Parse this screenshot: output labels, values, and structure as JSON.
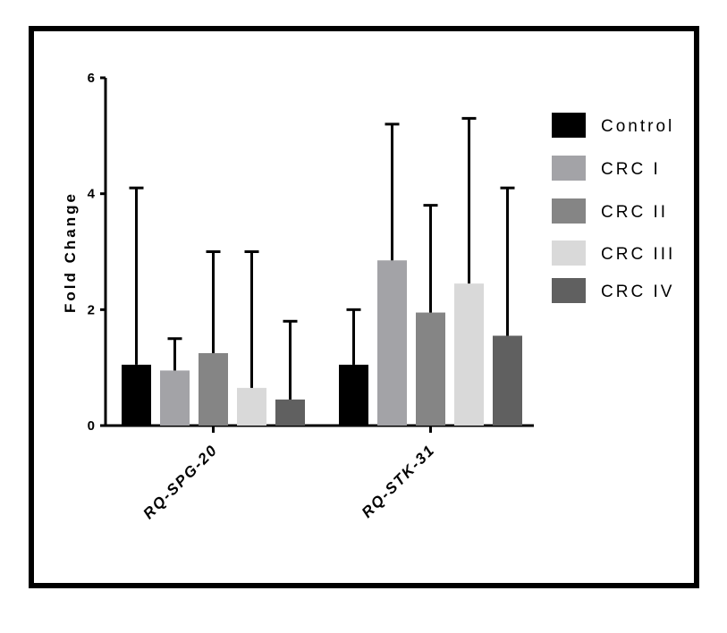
{
  "chart_data": {
    "type": "bar",
    "title": "",
    "xlabel": "",
    "ylabel": "Fold Change",
    "ylim": [
      0,
      6
    ],
    "yticks": [
      "0",
      "2",
      "4",
      "6"
    ],
    "categories": [
      "RQ-SPG-20",
      "RQ-STK-31"
    ],
    "series": [
      {
        "name": "Control",
        "color": "#000000",
        "values": [
          1.05,
          1.05
        ],
        "error_upper": [
          4.1,
          2.0
        ]
      },
      {
        "name": "CRC I",
        "color": "#a3a3a7",
        "values": [
          0.95,
          2.85
        ],
        "error_upper": [
          1.5,
          5.2
        ]
      },
      {
        "name": "CRC II",
        "color": "#858585",
        "values": [
          1.25,
          1.95
        ],
        "error_upper": [
          3.0,
          3.8
        ]
      },
      {
        "name": "CRC III",
        "color": "#d9d9d9",
        "values": [
          0.65,
          2.45
        ],
        "error_upper": [
          3.0,
          5.3
        ]
      },
      {
        "name": "CRC IV",
        "color": "#606060",
        "values": [
          0.45,
          1.55
        ],
        "error_upper": [
          1.8,
          4.1
        ]
      }
    ],
    "legend_position": "right",
    "grid": false
  }
}
